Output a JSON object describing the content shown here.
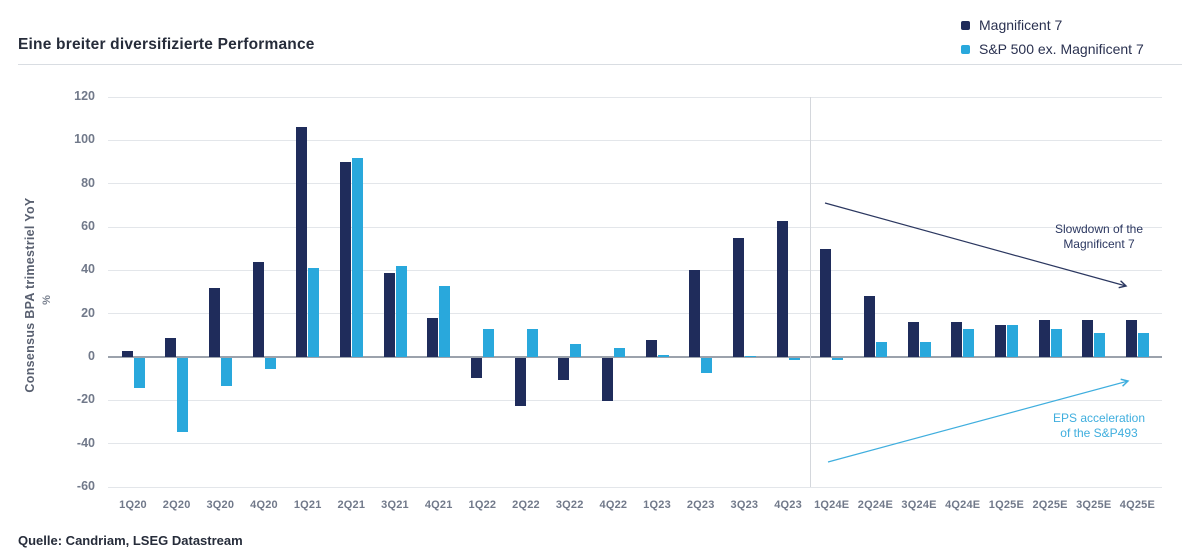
{
  "header": {
    "title": "Eine breiter diversifizierte Performance"
  },
  "chart_data": {
    "type": "bar",
    "title": "Eine breiter diversifizierte Performance",
    "ylabel": "Consensus BPA trimestriel YoY",
    "ylabel_unit": "%",
    "ylim": [
      -60,
      120
    ],
    "yticks": [
      120,
      100,
      80,
      60,
      40,
      20,
      0,
      -20,
      -40,
      -60
    ],
    "grid": true,
    "legend_position": "top-right",
    "categories": [
      "1Q20",
      "2Q20",
      "3Q20",
      "4Q20",
      "1Q21",
      "2Q21",
      "3Q21",
      "4Q21",
      "1Q22",
      "2Q22",
      "3Q22",
      "4Q22",
      "1Q23",
      "2Q23",
      "3Q23",
      "4Q23",
      "1Q24E",
      "2Q24E",
      "3Q24E",
      "4Q24E",
      "1Q25E",
      "2Q25E",
      "3Q25E",
      "4Q25E"
    ],
    "series": [
      {
        "name": "Magnificent 7",
        "color": "#1F2C5B",
        "values": [
          3,
          9,
          32,
          44,
          106,
          90,
          39,
          18,
          -9,
          -22,
          -10,
          -20,
          8,
          40,
          55,
          63,
          50,
          28,
          16,
          16,
          15,
          17,
          17,
          17
        ]
      },
      {
        "name": "S&P 500 ex. Magnificent 7",
        "color": "#29A8DC",
        "values": [
          -14,
          -34,
          -13,
          -5,
          41,
          92,
          42,
          33,
          13,
          13,
          6,
          4,
          1,
          -7,
          0.5,
          -0.5,
          -1,
          7,
          7,
          13,
          15,
          13,
          11,
          11
        ]
      }
    ],
    "separator_before_category": "1Q24E",
    "annotations": [
      {
        "lines": [
          "Slowdown of the",
          "Magnificent 7"
        ],
        "color": "#2B3760",
        "arrow": {
          "from": [
            825,
            203
          ],
          "to": [
            1126,
            286
          ]
        }
      },
      {
        "lines": [
          "EPS acceleration",
          "of the S&P493"
        ],
        "color": "#3FAEDE",
        "arrow": {
          "from": [
            828,
            462
          ],
          "to": [
            1128,
            381
          ]
        }
      }
    ]
  },
  "footer": {
    "source": "Quelle: Candriam, LSEG Datastream"
  }
}
